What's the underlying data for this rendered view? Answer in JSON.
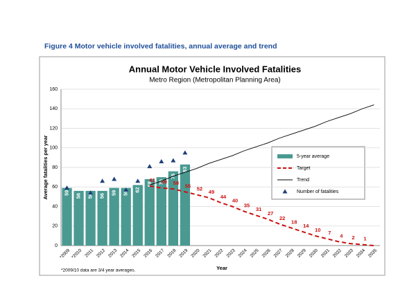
{
  "heading": "Figure 4 Motor vehicle involved fatalities, annual average and trend",
  "chart_data": {
    "type": "combo",
    "title": "Annual Motor Vehicle Involved Fatalities",
    "subtitle": "Metro Region (Metropolitan Planning Area)",
    "x_label": "Year",
    "y_label": "Average fatalities per year",
    "footnote": "*2009/10 data are 3/4 year averages.",
    "categories": [
      "*2009",
      "*2010",
      "2011",
      "2012",
      "2013",
      "2014",
      "2015",
      "2016",
      "2017",
      "2018",
      "2019",
      "2020",
      "2021",
      "2022",
      "2023",
      "2024",
      "2025",
      "2026",
      "2027",
      "2028",
      "2029",
      "2030",
      "2031",
      "2032",
      "2033",
      "2034",
      "2035"
    ],
    "ylim": [
      0,
      160
    ],
    "yticks": [
      0,
      20,
      40,
      60,
      80,
      100,
      120,
      140,
      160
    ],
    "series": [
      {
        "name": "5-year average",
        "type": "bar",
        "color": "#4a9a92",
        "values": [
          59,
          56,
          56,
          56,
          59,
          59,
          62,
          68,
          70,
          76,
          83,
          null,
          null,
          null,
          null,
          null,
          null,
          null,
          null,
          null,
          null,
          null,
          null,
          null,
          null,
          null,
          null
        ]
      },
      {
        "name": "Target",
        "type": "dashed-line",
        "color": "#cc1111",
        "values": [
          null,
          null,
          null,
          null,
          null,
          null,
          null,
          61,
          59,
          58,
          55,
          52,
          49,
          44,
          40,
          35,
          31,
          27,
          22,
          18,
          14,
          10,
          7,
          4,
          2,
          1,
          0
        ],
        "value_labels": [
          null,
          null,
          null,
          null,
          null,
          null,
          null,
          "61",
          "59",
          "58",
          "55",
          "52",
          "49",
          "44",
          "40",
          "35",
          "31",
          "27",
          "22",
          "18",
          "14",
          "10",
          "7",
          "4",
          "2",
          "1",
          null
        ]
      },
      {
        "name": "Trend",
        "type": "line",
        "color": "#000000",
        "values": [
          null,
          null,
          null,
          null,
          null,
          null,
          null,
          62,
          66,
          71,
          75,
          79,
          84,
          88,
          92,
          97,
          101,
          105,
          110,
          114,
          118,
          122,
          127,
          131,
          135,
          140,
          144
        ]
      },
      {
        "name": "Number of fatalities",
        "type": "scatter",
        "color": "#1f3f7a",
        "values": [
          59,
          null,
          54,
          66,
          68,
          57,
          66,
          81,
          86,
          87,
          95,
          null,
          null,
          null,
          null,
          null,
          null,
          null,
          null,
          null,
          null,
          null,
          null,
          null,
          null,
          null,
          null
        ]
      }
    ]
  }
}
